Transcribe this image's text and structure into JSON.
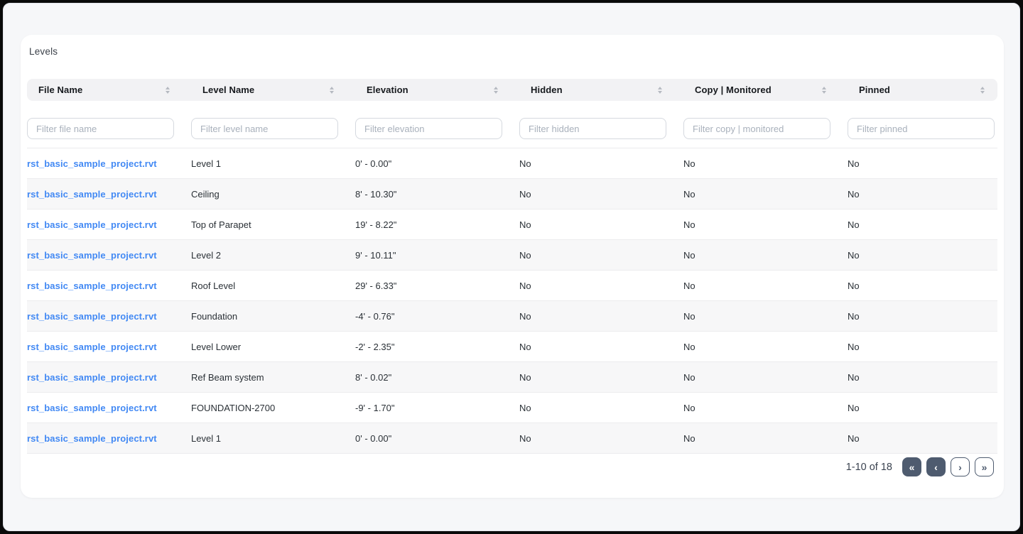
{
  "colors": {
    "link_blue": "#4289f4",
    "pagination_slate": "#4e5b6f",
    "header_bg": "#f2f2f4",
    "page_bg": "#f6f7f9"
  },
  "page": {
    "title": "Levels"
  },
  "table": {
    "columns": [
      {
        "label": "File Name",
        "filter_placeholder": "Filter file name"
      },
      {
        "label": "Level Name",
        "filter_placeholder": "Filter level name"
      },
      {
        "label": "Elevation",
        "filter_placeholder": "Filter elevation"
      },
      {
        "label": "Hidden",
        "filter_placeholder": "Filter hidden"
      },
      {
        "label": "Copy | Monitored",
        "filter_placeholder": "Filter copy | monitored"
      },
      {
        "label": "Pinned",
        "filter_placeholder": "Filter pinned"
      }
    ],
    "rows": [
      {
        "file_name": "rst_basic_sample_project.rvt",
        "level_name": "Level 1",
        "elevation": "0' - 0.00\"",
        "hidden": "No",
        "copy_monitored": "No",
        "pinned": "No"
      },
      {
        "file_name": "rst_basic_sample_project.rvt",
        "level_name": "Ceiling",
        "elevation": "8' - 10.30\"",
        "hidden": "No",
        "copy_monitored": "No",
        "pinned": "No"
      },
      {
        "file_name": "rst_basic_sample_project.rvt",
        "level_name": "Top of Parapet",
        "elevation": "19' - 8.22\"",
        "hidden": "No",
        "copy_monitored": "No",
        "pinned": "No"
      },
      {
        "file_name": "rst_basic_sample_project.rvt",
        "level_name": "Level 2",
        "elevation": "9' - 10.11\"",
        "hidden": "No",
        "copy_monitored": "No",
        "pinned": "No"
      },
      {
        "file_name": "rst_basic_sample_project.rvt",
        "level_name": "Roof Level",
        "elevation": "29' - 6.33\"",
        "hidden": "No",
        "copy_monitored": "No",
        "pinned": "No"
      },
      {
        "file_name": "rst_basic_sample_project.rvt",
        "level_name": "Foundation",
        "elevation": "-4' - 0.76\"",
        "hidden": "No",
        "copy_monitored": "No",
        "pinned": "No"
      },
      {
        "file_name": "rst_basic_sample_project.rvt",
        "level_name": "Level Lower",
        "elevation": "-2' - 2.35\"",
        "hidden": "No",
        "copy_monitored": "No",
        "pinned": "No"
      },
      {
        "file_name": "rst_basic_sample_project.rvt",
        "level_name": "Ref Beam system",
        "elevation": "8' - 0.02\"",
        "hidden": "No",
        "copy_monitored": "No",
        "pinned": "No"
      },
      {
        "file_name": "rst_basic_sample_project.rvt",
        "level_name": "FOUNDATION-2700",
        "elevation": "-9' - 1.70\"",
        "hidden": "No",
        "copy_monitored": "No",
        "pinned": "No"
      },
      {
        "file_name": "rst_basic_sample_project.rvt",
        "level_name": "Level 1",
        "elevation": "0' - 0.00\"",
        "hidden": "No",
        "copy_monitored": "No",
        "pinned": "No"
      }
    ]
  },
  "pagination": {
    "range_label": "1-10 of 18"
  },
  "icons": {
    "sort": "sort-icon",
    "first_page": "«",
    "prev_page": "‹",
    "next_page": "›",
    "last_page": "»"
  }
}
